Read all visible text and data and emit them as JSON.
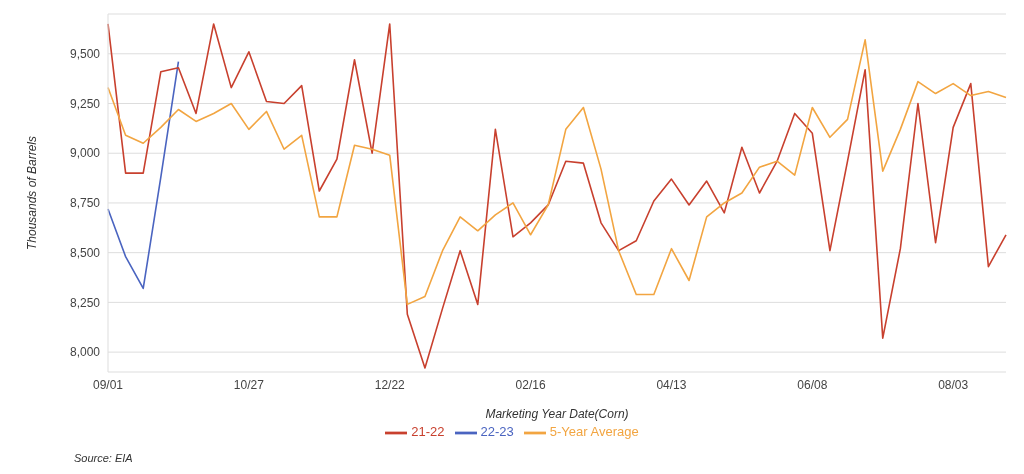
{
  "chart_data": {
    "type": "line",
    "xlabel": "Marketing Year Date(Corn)",
    "ylabel": "Thousands of Barrels",
    "categories": [
      "09/01",
      null,
      null,
      null,
      null,
      null,
      null,
      null,
      "10/27",
      null,
      null,
      null,
      null,
      null,
      null,
      null,
      "12/22",
      null,
      null,
      null,
      null,
      null,
      null,
      null,
      "02/16",
      null,
      null,
      null,
      null,
      null,
      null,
      null,
      "04/13",
      null,
      null,
      null,
      null,
      null,
      null,
      null,
      "06/08",
      null,
      null,
      null,
      null,
      null,
      null,
      null,
      "08/03",
      null,
      null,
      null
    ],
    "series": [
      {
        "name": "22-23",
        "color": "#4a64c0",
        "values": [
          8720,
          8480,
          8320,
          8880,
          9460,
          null,
          null,
          null,
          null,
          null,
          null,
          null,
          null,
          null,
          null,
          null,
          null,
          null,
          null,
          null,
          null,
          null,
          null,
          null,
          null,
          null,
          null,
          null,
          null,
          null,
          null,
          null,
          null,
          null,
          null,
          null,
          null,
          null,
          null,
          null,
          null,
          null,
          null,
          null,
          null,
          null,
          null,
          null,
          null,
          null,
          null,
          null
        ]
      },
      {
        "name": "21-22",
        "color": "#c8402e",
        "values": [
          9650,
          8900,
          8900,
          9410,
          9430,
          9200,
          9650,
          9330,
          9510,
          9260,
          9250,
          9340,
          8810,
          8970,
          9470,
          9000,
          9650,
          8190,
          7920,
          8220,
          8510,
          8240,
          9120,
          8580,
          8650,
          8740,
          8960,
          8950,
          8650,
          8510,
          8560,
          8760,
          8870,
          8740,
          8860,
          8700,
          9030,
          8800,
          8960,
          9200,
          9100,
          8510,
          8960,
          9420,
          8070,
          8520,
          9250,
          8550,
          9130,
          9350,
          8430,
          8590
        ]
      },
      {
        "name": "5-Year Average",
        "color": "#f2a541",
        "values": [
          9330,
          9090,
          9050,
          9130,
          9220,
          9160,
          9200,
          9250,
          9120,
          9210,
          9020,
          9090,
          8680,
          8680,
          9040,
          9020,
          8990,
          8240,
          8280,
          8510,
          8680,
          8610,
          8690,
          8750,
          8590,
          8740,
          9120,
          9230,
          8920,
          8510,
          8290,
          8290,
          8520,
          8360,
          8680,
          8750,
          8800,
          8930,
          8960,
          8890,
          9230,
          9080,
          9170,
          9570,
          8910,
          9120,
          9360,
          9300,
          9350,
          9290,
          9310,
          9280
        ]
      }
    ],
    "ylim": [
      7900,
      9700
    ],
    "yticks": [
      {
        "value": 8000,
        "label": "8,000"
      },
      {
        "value": 8250,
        "label": "8,250"
      },
      {
        "value": 8500,
        "label": "8,500"
      },
      {
        "value": 8750,
        "label": "8,750"
      },
      {
        "value": 9000,
        "label": "9,000"
      },
      {
        "value": 9250,
        "label": "9,250"
      },
      {
        "value": 9500,
        "label": "9,500"
      }
    ],
    "grid": "y",
    "legend": "bottom",
    "marker": "none",
    "line_style": "solid",
    "annotations": [
      "Source: EIA"
    ]
  }
}
